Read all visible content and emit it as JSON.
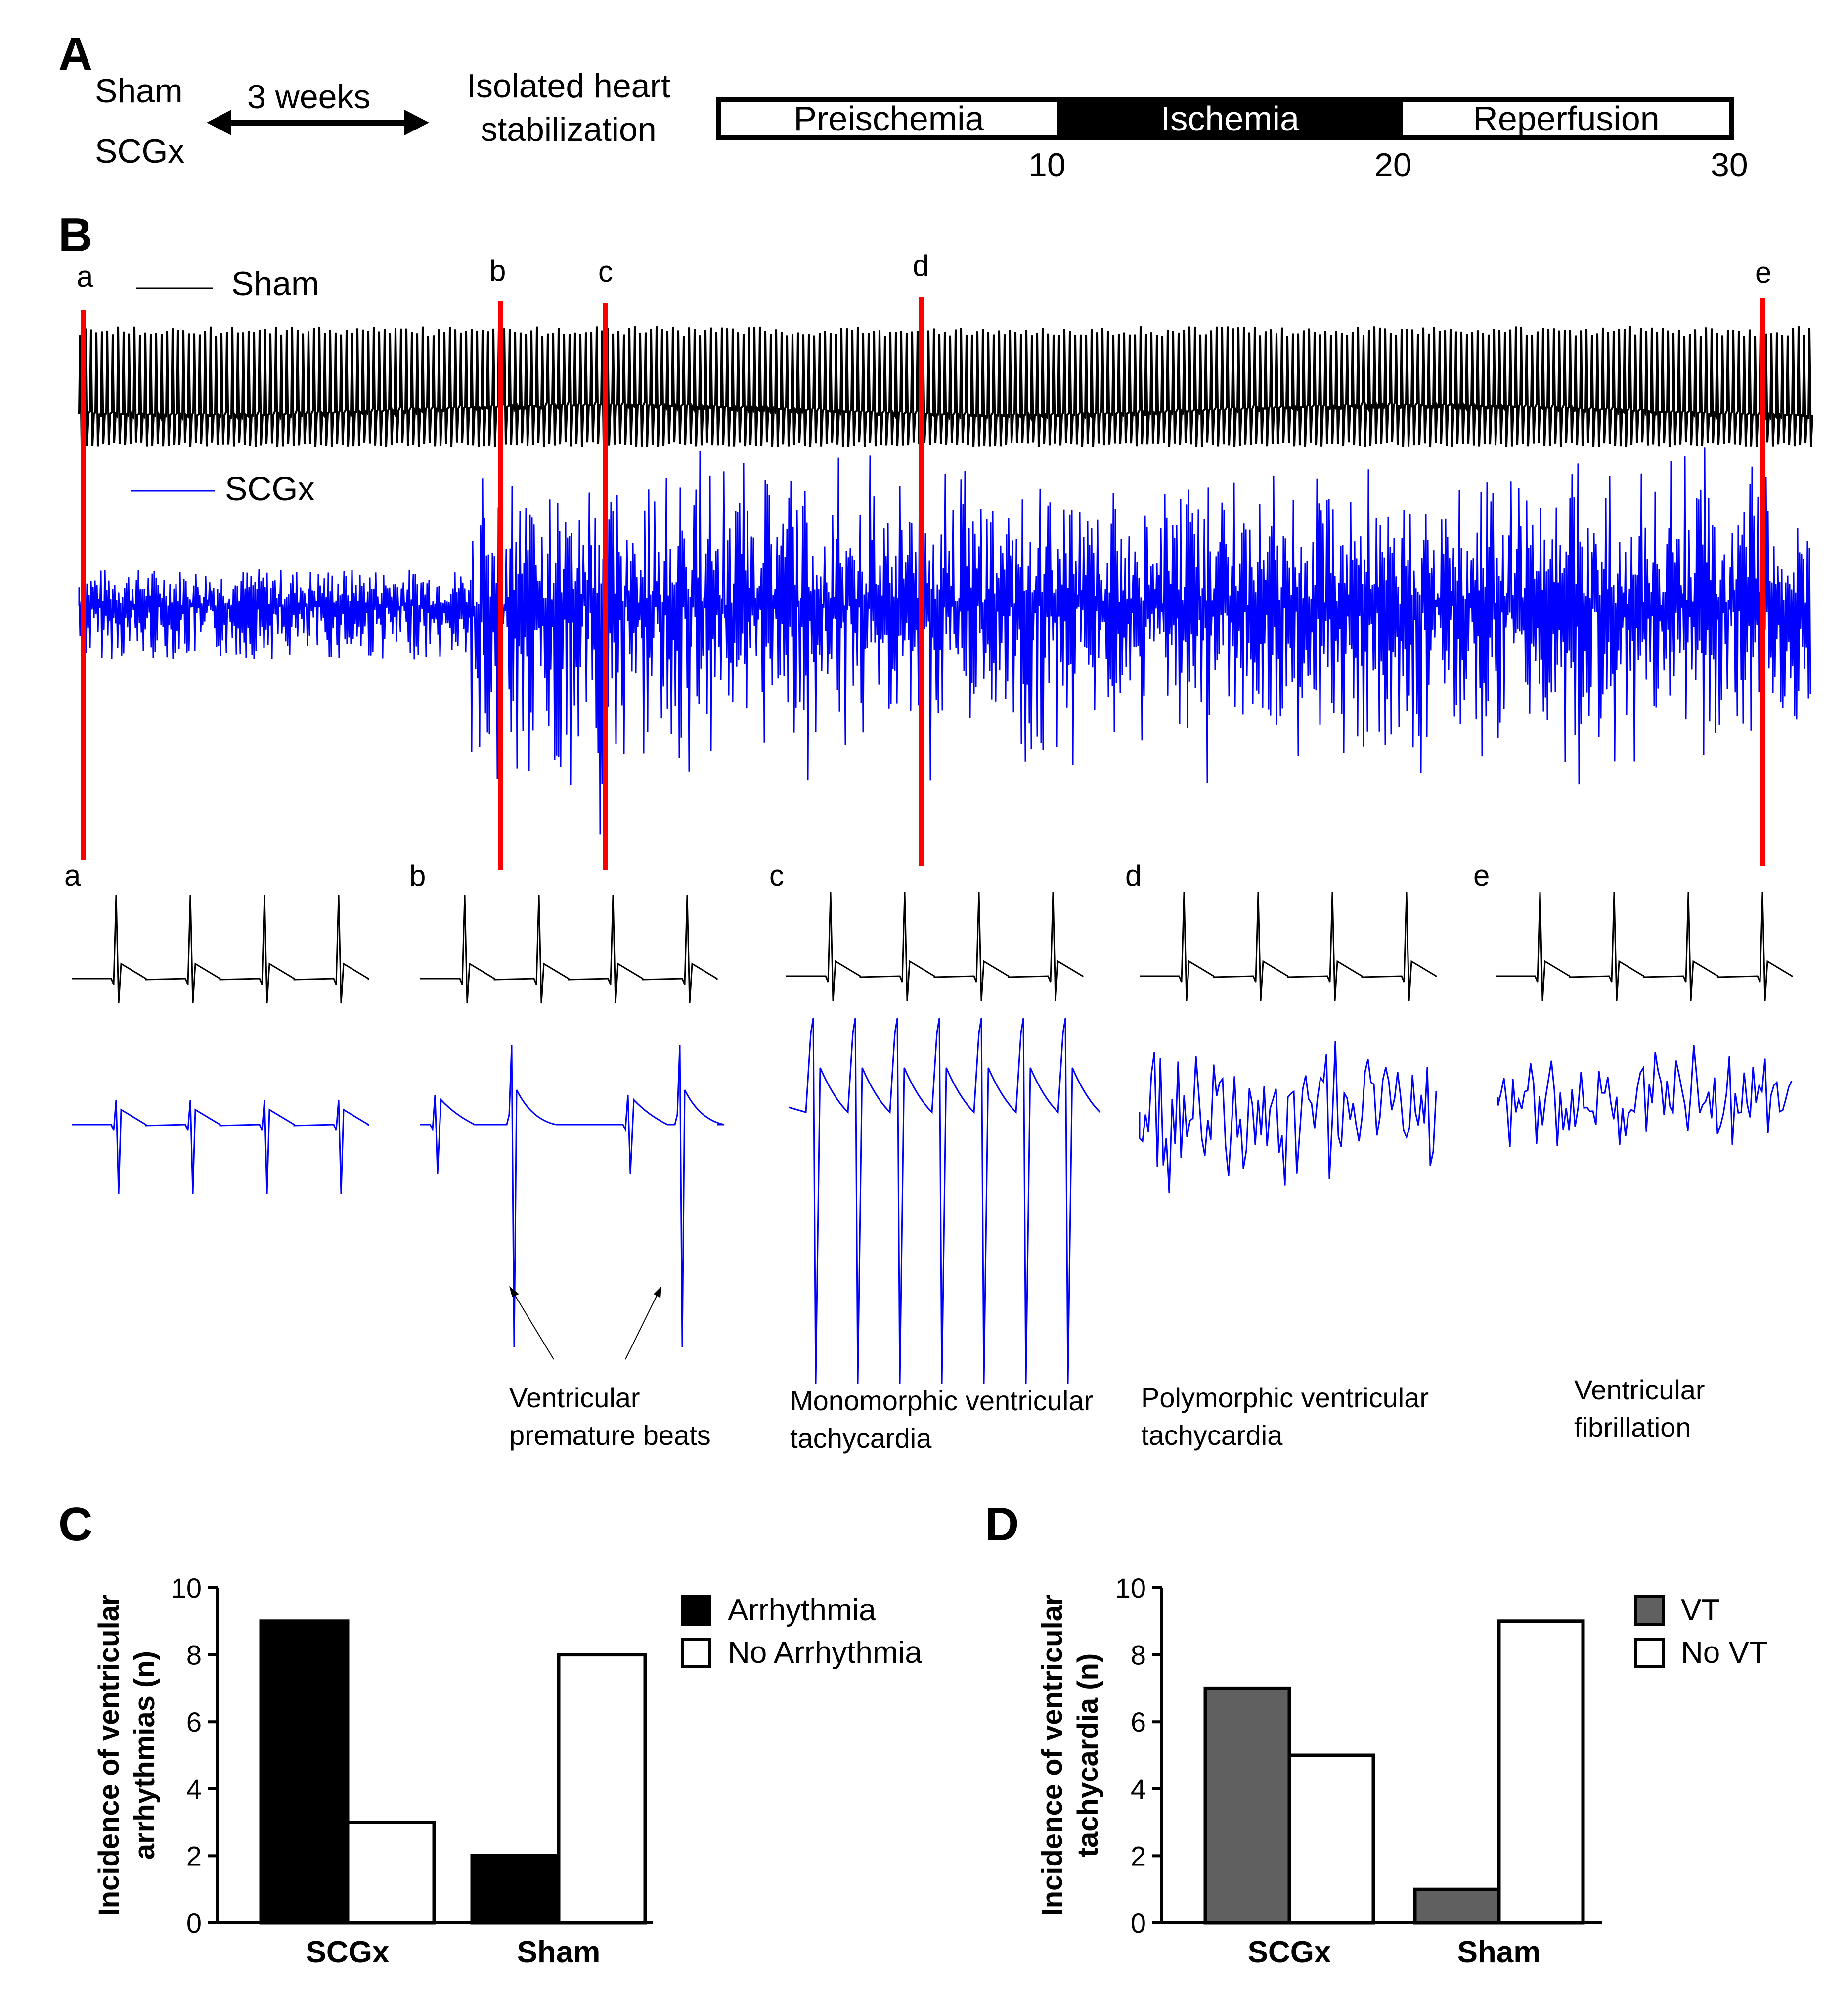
{
  "panel_a": {
    "letter": "A",
    "group1": "Sham",
    "group2": "SCGx",
    "duration": "3 weeks",
    "stage_line1": "Isolated heart",
    "stage_line2": "stabilization",
    "segments": [
      "Preischemia",
      "Ischemia",
      "Reperfusion"
    ],
    "ticks": [
      "10",
      "20",
      "30"
    ]
  },
  "panel_b": {
    "letter": "B",
    "legend_sham": "Sham",
    "legend_scgx": "SCGx",
    "markers": [
      "a",
      "b",
      "c",
      "d",
      "e"
    ],
    "insets": [
      "a",
      "b",
      "c",
      "d",
      "e"
    ],
    "captions": {
      "b_line1": "Ventricular",
      "b_line2": "premature beats",
      "c_line1": "Monomorphic ventricular",
      "c_line2": "tachycardia",
      "d_line1": "Polymorphic ventricular",
      "d_line2": "tachycardia",
      "e_line1": "Ventricular",
      "e_line2": "fibrillation"
    },
    "colors": {
      "sham": "#000000",
      "scgx": "#0000ff",
      "marker": "#ff0000"
    }
  },
  "chart_data": [
    {
      "panel": "C",
      "type": "bar",
      "categories": [
        "SCGx",
        "Sham"
      ],
      "series": [
        {
          "name": "Arrhythmia",
          "values": [
            9,
            2
          ],
          "color": "#000000"
        },
        {
          "name": "No Arrhythmia",
          "values": [
            3,
            8
          ],
          "color": "#ffffff"
        }
      ],
      "ylabel_line1": "Incidence of ventricular",
      "ylabel_line2": "arrhythmias (n)",
      "ylim": [
        0,
        10
      ],
      "yticks": [
        "0",
        "2",
        "4",
        "6",
        "8",
        "10"
      ],
      "legend_position": "top-right"
    },
    {
      "panel": "D",
      "type": "bar",
      "categories": [
        "SCGx",
        "Sham"
      ],
      "series": [
        {
          "name": "VT",
          "values": [
            7,
            1
          ],
          "color": "#606060"
        },
        {
          "name": "No VT",
          "values": [
            5,
            9
          ],
          "color": "#ffffff"
        }
      ],
      "ylabel_line1": "Incidence of ventricular",
      "ylabel_line2": "tachycardia (n)",
      "ylim": [
        0,
        10
      ],
      "yticks": [
        "0",
        "2",
        "4",
        "6",
        "8",
        "10"
      ],
      "legend_position": "top-right"
    }
  ]
}
